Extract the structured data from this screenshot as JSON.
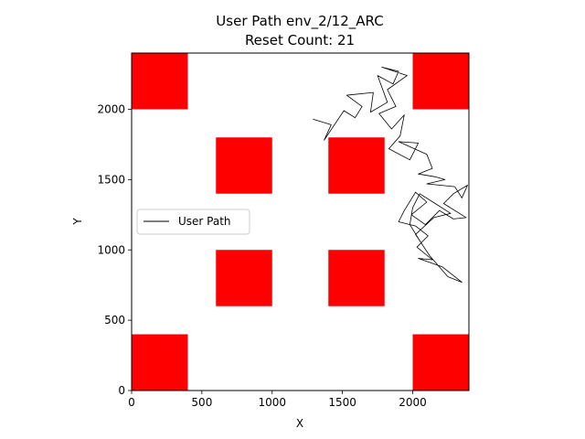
{
  "chart_data": {
    "type": "line",
    "title": "User Path env_2/12_ARC",
    "subtitle": "Reset Count: 21",
    "xlabel": "X",
    "ylabel": "Y",
    "xlim": [
      0,
      2400
    ],
    "ylim": [
      0,
      2400
    ],
    "xticks": [
      0,
      500,
      1000,
      1500,
      2000
    ],
    "yticks": [
      0,
      500,
      1000,
      1500,
      2000
    ],
    "grid": false,
    "legend": {
      "position": "center-left",
      "entries": [
        "User Path"
      ]
    },
    "obstacle_color": "#ff0000",
    "path_color": "#000000",
    "obstacles": [
      {
        "x0": 0,
        "y0": 2000,
        "x1": 400,
        "y1": 2400
      },
      {
        "x0": 2000,
        "y0": 2000,
        "x1": 2400,
        "y1": 2400
      },
      {
        "x0": 600,
        "y0": 1400,
        "x1": 1000,
        "y1": 1800
      },
      {
        "x0": 1400,
        "y0": 1400,
        "x1": 1800,
        "y1": 1800
      },
      {
        "x0": 600,
        "y0": 600,
        "x1": 1000,
        "y1": 1000
      },
      {
        "x0": 1400,
        "y0": 600,
        "x1": 1800,
        "y1": 1000
      },
      {
        "x0": 0,
        "y0": 0,
        "x1": 400,
        "y1": 400
      },
      {
        "x0": 2000,
        "y0": 0,
        "x1": 2400,
        "y1": 400
      }
    ],
    "series": [
      {
        "name": "User Path",
        "points": [
          [
            1290,
            1930
          ],
          [
            1420,
            1890
          ],
          [
            1370,
            1780
          ],
          [
            1510,
            1990
          ],
          [
            1590,
            1940
          ],
          [
            1640,
            2020
          ],
          [
            1530,
            2100
          ],
          [
            1720,
            2120
          ],
          [
            1700,
            1980
          ],
          [
            1820,
            2050
          ],
          [
            1750,
            2240
          ],
          [
            1860,
            2180
          ],
          [
            1900,
            2270
          ],
          [
            1780,
            2300
          ],
          [
            1960,
            2240
          ],
          [
            1820,
            2140
          ],
          [
            1880,
            2020
          ],
          [
            1760,
            1970
          ],
          [
            1850,
            1860
          ],
          [
            1940,
            1960
          ],
          [
            1910,
            1810
          ],
          [
            1830,
            1720
          ],
          [
            1980,
            1640
          ],
          [
            2040,
            1760
          ],
          [
            1900,
            1770
          ],
          [
            2100,
            1680
          ],
          [
            2140,
            1580
          ],
          [
            2040,
            1540
          ],
          [
            2160,
            1520
          ],
          [
            2230,
            1500
          ],
          [
            2100,
            1470
          ],
          [
            2300,
            1450
          ],
          [
            2350,
            1370
          ],
          [
            2390,
            1460
          ],
          [
            2290,
            1400
          ],
          [
            2220,
            1330
          ],
          [
            2380,
            1230
          ],
          [
            2290,
            1220
          ],
          [
            2190,
            1280
          ],
          [
            2090,
            1180
          ],
          [
            1990,
            1250
          ],
          [
            2100,
            1340
          ],
          [
            2020,
            1410
          ],
          [
            1940,
            1280
          ],
          [
            1900,
            1200
          ],
          [
            2020,
            1170
          ],
          [
            2110,
            1100
          ],
          [
            2030,
            1020
          ],
          [
            2140,
            930
          ],
          [
            2040,
            940
          ],
          [
            2210,
            880
          ],
          [
            2350,
            770
          ],
          [
            2250,
            810
          ],
          [
            2120,
            960
          ],
          [
            2020,
            1110
          ],
          [
            2150,
            1230
          ],
          [
            2270,
            1260
          ],
          [
            2160,
            1330
          ],
          [
            2050,
            1400
          ],
          [
            2000,
            1300
          ],
          [
            1980,
            1180
          ],
          [
            2060,
            1050
          ]
        ]
      }
    ]
  }
}
